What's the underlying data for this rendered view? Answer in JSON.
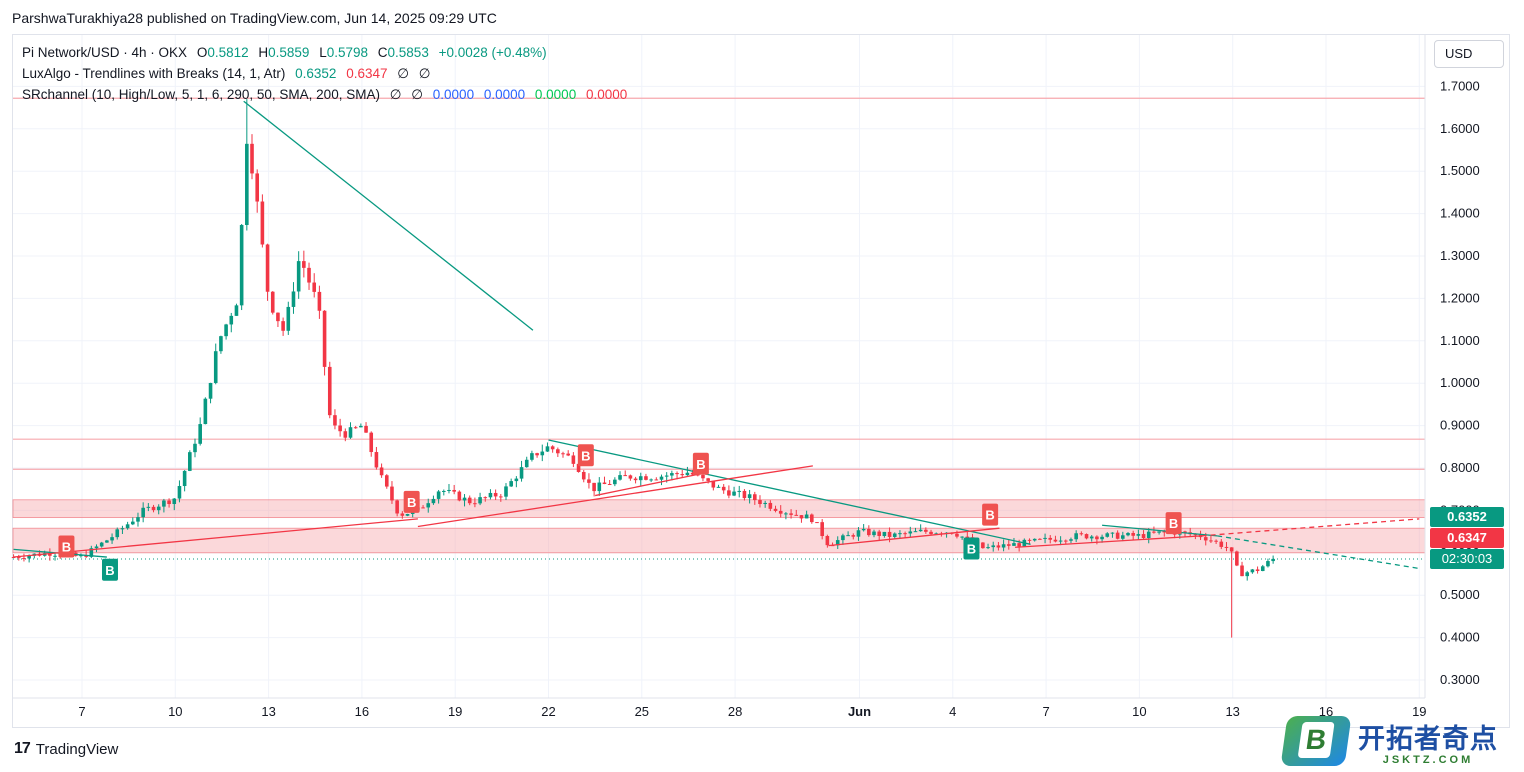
{
  "header": {
    "publisher_line": "ParshwaTurakhiya28 published on TradingView.com, Jun 14, 2025 09:29 UTC"
  },
  "legend": {
    "symbol_line": "Pi Network/USD · 4h · OKX",
    "o_label": "O",
    "o_value": "0.5812",
    "h_label": "H",
    "h_value": "0.5859",
    "l_label": "L",
    "l_value": "0.5798",
    "c_label": "C",
    "c_value": "0.5853",
    "change": "+0.0028 (+0.48%)",
    "lux_name": "LuxAlgo - Trendlines with Breaks (14, 1, Atr)",
    "lux_v1": "0.6352",
    "lux_v2": "0.6347",
    "lux_v3": "∅",
    "lux_v4": "∅",
    "sr_name": "SRchannel (10, High/Low, 5, 1, 6, 290, 50, SMA, 200, SMA)",
    "sr_v1": "∅",
    "sr_v2": "∅",
    "sr_v3": "0.0000",
    "sr_v4": "0.0000",
    "sr_v5": "0.0000",
    "sr_v6": "0.0000"
  },
  "axis": {
    "currency": "USD"
  },
  "price_tags": {
    "upper": "0.6352",
    "lower": "0.6347",
    "countdown": "02:30:03"
  },
  "footer": {
    "brand": "TradingView"
  },
  "watermark": {
    "icon_letter": "B",
    "title": "开拓者奇点",
    "subtitle": "JSKTZ.COM"
  },
  "colors": {
    "up": "#089981",
    "down": "#f23645",
    "zone": "#f7a8ae",
    "trend_green": "#089981",
    "trend_red": "#f23645"
  },
  "chart_data": {
    "type": "candlestick",
    "interval": "4h",
    "ylim": [
      0.28,
      1.78
    ],
    "y_ticks": [
      "1.7000",
      "1.6000",
      "1.5000",
      "1.4000",
      "1.3000",
      "1.2000",
      "1.1000",
      "1.0000",
      "0.9000",
      "0.8000",
      "0.7000",
      "0.6000",
      "0.5000",
      "0.4000",
      "0.3000"
    ],
    "x_ticks": [
      {
        "label": "7",
        "day": 7
      },
      {
        "label": "10",
        "day": 10
      },
      {
        "label": "13",
        "day": 13
      },
      {
        "label": "16",
        "day": 16
      },
      {
        "label": "19",
        "day": 19
      },
      {
        "label": "22",
        "day": 22
      },
      {
        "label": "25",
        "day": 25
      },
      {
        "label": "28",
        "day": 28
      },
      {
        "label": "Jun",
        "day": 32
      },
      {
        "label": "4",
        "day": 35
      },
      {
        "label": "7",
        "day": 38
      },
      {
        "label": "10",
        "day": 41
      },
      {
        "label": "13",
        "day": 44
      },
      {
        "label": "16",
        "day": 47
      },
      {
        "label": "19",
        "day": 50
      }
    ],
    "x_range_days": [
      4.8,
      50.0
    ],
    "close_points": [
      {
        "day": 4.8,
        "price": 0.59
      },
      {
        "day": 6.0,
        "price": 0.6
      },
      {
        "day": 7.0,
        "price": 0.59
      },
      {
        "day": 8.0,
        "price": 0.64
      },
      {
        "day": 9.0,
        "price": 0.7
      },
      {
        "day": 10.0,
        "price": 0.73
      },
      {
        "day": 10.8,
        "price": 0.9
      },
      {
        "day": 11.4,
        "price": 1.1
      },
      {
        "day": 12.0,
        "price": 1.2
      },
      {
        "day": 12.3,
        "price": 1.58
      },
      {
        "day": 12.5,
        "price": 1.5
      },
      {
        "day": 13.0,
        "price": 1.2
      },
      {
        "day": 13.5,
        "price": 1.12
      },
      {
        "day": 14.0,
        "price": 1.3
      },
      {
        "day": 14.6,
        "price": 1.18
      },
      {
        "day": 15.0,
        "price": 0.9
      },
      {
        "day": 15.5,
        "price": 0.88
      },
      {
        "day": 16.0,
        "price": 0.9
      },
      {
        "day": 16.6,
        "price": 0.78
      },
      {
        "day": 17.2,
        "price": 0.69
      },
      {
        "day": 17.8,
        "price": 0.7
      },
      {
        "day": 18.5,
        "price": 0.75
      },
      {
        "day": 19.5,
        "price": 0.72
      },
      {
        "day": 20.5,
        "price": 0.74
      },
      {
        "day": 21.5,
        "price": 0.83
      },
      {
        "day": 22.0,
        "price": 0.85
      },
      {
        "day": 22.8,
        "price": 0.82
      },
      {
        "day": 23.4,
        "price": 0.75
      },
      {
        "day": 24.5,
        "price": 0.78
      },
      {
        "day": 25.5,
        "price": 0.78
      },
      {
        "day": 26.5,
        "price": 0.79
      },
      {
        "day": 27.5,
        "price": 0.75
      },
      {
        "day": 28.5,
        "price": 0.73
      },
      {
        "day": 29.5,
        "price": 0.7
      },
      {
        "day": 30.5,
        "price": 0.68
      },
      {
        "day": 31.0,
        "price": 0.62
      },
      {
        "day": 32.0,
        "price": 0.65
      },
      {
        "day": 33.0,
        "price": 0.64
      },
      {
        "day": 34.0,
        "price": 0.65
      },
      {
        "day": 35.0,
        "price": 0.65
      },
      {
        "day": 36.0,
        "price": 0.61
      },
      {
        "day": 37.0,
        "price": 0.62
      },
      {
        "day": 38.0,
        "price": 0.63
      },
      {
        "day": 39.0,
        "price": 0.64
      },
      {
        "day": 40.0,
        "price": 0.64
      },
      {
        "day": 41.0,
        "price": 0.64
      },
      {
        "day": 42.0,
        "price": 0.65
      },
      {
        "day": 43.0,
        "price": 0.64
      },
      {
        "day": 43.9,
        "price": 0.61
      },
      {
        "day": 44.2,
        "price": 0.55
      },
      {
        "day": 44.8,
        "price": 0.56
      },
      {
        "day": 45.3,
        "price": 0.585
      }
    ],
    "spike_low": {
      "day": 44.0,
      "price": 0.4
    },
    "peak_high": {
      "day": 12.3,
      "price": 1.67
    },
    "sr_zones": [
      {
        "top": 0.725,
        "bottom": 0.683
      },
      {
        "top": 0.658,
        "bottom": 0.6
      }
    ],
    "sr_lines": [
      1.672,
      0.868,
      0.797
    ],
    "current_price": 0.5853,
    "trendlines_green": [
      {
        "from": {
          "day": 4.8,
          "price": 0.608
        },
        "to": {
          "day": 7.8,
          "price": 0.59
        }
      },
      {
        "from": {
          "day": 7.8,
          "price": 0.59
        },
        "to": {
          "day": 7.8,
          "price": 0.59
        }
      },
      {
        "from": {
          "day": 12.2,
          "price": 1.665
        },
        "to": {
          "day": 21.5,
          "price": 1.125
        }
      },
      {
        "from": {
          "day": 22.0,
          "price": 0.866
        },
        "to": {
          "day": 37.5,
          "price": 0.62
        }
      },
      {
        "from": {
          "day": 39.8,
          "price": 0.665
        },
        "to": {
          "day": 43.5,
          "price": 0.64
        }
      }
    ],
    "trendlines_green_dashed": [
      {
        "from": {
          "day": 43.5,
          "price": 0.64
        },
        "to": {
          "day": 50.0,
          "price": 0.563
        }
      }
    ],
    "trendlines_red": [
      {
        "from": {
          "day": 4.8,
          "price": 0.59
        },
        "to": {
          "day": 17.8,
          "price": 0.68
        }
      },
      {
        "from": {
          "day": 17.8,
          "price": 0.662
        },
        "to": {
          "day": 30.5,
          "price": 0.805
        }
      },
      {
        "from": {
          "day": 23.5,
          "price": 0.735
        },
        "to": {
          "day": 26.8,
          "price": 0.785
        }
      },
      {
        "from": {
          "day": 31.0,
          "price": 0.617
        },
        "to": {
          "day": 36.5,
          "price": 0.658
        }
      },
      {
        "from": {
          "day": 37.0,
          "price": 0.613
        },
        "to": {
          "day": 43.0,
          "price": 0.64
        }
      }
    ],
    "trendlines_red_dashed": [
      {
        "from": {
          "day": 43.0,
          "price": 0.64
        },
        "to": {
          "day": 50.0,
          "price": 0.68
        }
      }
    ],
    "break_labels": [
      {
        "label": "B",
        "color": "red",
        "day": 6.5,
        "price": 0.615
      },
      {
        "label": "B",
        "color": "green",
        "day": 7.9,
        "price": 0.56
      },
      {
        "label": "B",
        "color": "red",
        "day": 17.6,
        "price": 0.72
      },
      {
        "label": "B",
        "color": "red",
        "day": 23.2,
        "price": 0.83
      },
      {
        "label": "B",
        "color": "red",
        "day": 26.9,
        "price": 0.81
      },
      {
        "label": "B",
        "color": "green",
        "day": 35.6,
        "price": 0.61
      },
      {
        "label": "B",
        "color": "red",
        "day": 36.2,
        "price": 0.69
      },
      {
        "label": "B",
        "color": "red",
        "day": 42.1,
        "price": 0.67
      }
    ]
  }
}
